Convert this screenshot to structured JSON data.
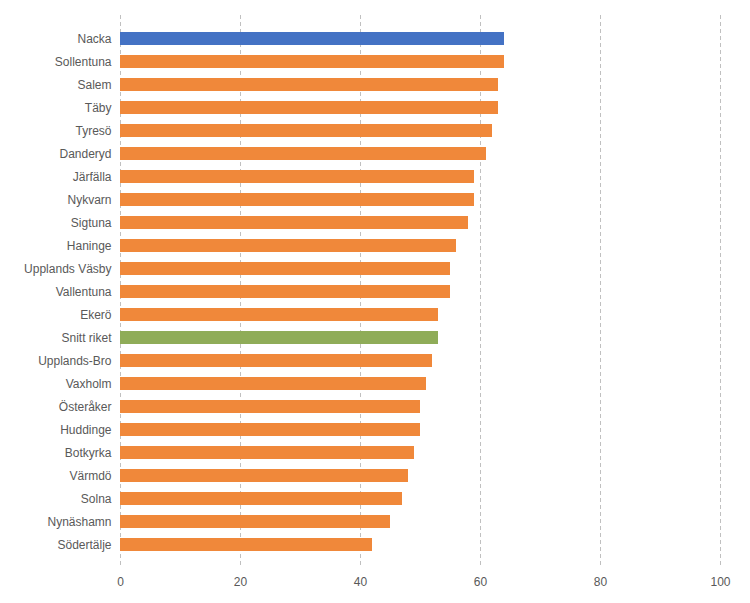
{
  "chart_data": {
    "type": "bar",
    "orientation": "horizontal",
    "categories": [
      "Nacka",
      "Sollentuna",
      "Salem",
      "Täby",
      "Tyresö",
      "Danderyd",
      "Järfälla",
      "Nykvarn",
      "Sigtuna",
      "Haninge",
      "Upplands Väsby",
      "Vallentuna",
      "Ekerö",
      "Snitt riket",
      "Upplands-Bro",
      "Vaxholm",
      "Österåker",
      "Huddinge",
      "Botkyrka",
      "Värmdö",
      "Solna",
      "Nynäshamn",
      "Södertälje"
    ],
    "values": [
      64,
      64,
      63,
      63,
      62,
      61,
      59,
      59,
      58,
      56,
      55,
      55,
      53,
      53,
      52,
      51,
      50,
      50,
      49,
      48,
      47,
      45,
      42
    ],
    "colors": [
      "#4472c4",
      "#f0883a",
      "#f0883a",
      "#f0883a",
      "#f0883a",
      "#f0883a",
      "#f0883a",
      "#f0883a",
      "#f0883a",
      "#f0883a",
      "#f0883a",
      "#f0883a",
      "#f0883a",
      "#8fac58",
      "#f0883a",
      "#f0883a",
      "#f0883a",
      "#f0883a",
      "#f0883a",
      "#f0883a",
      "#f0883a",
      "#f0883a",
      "#f0883a"
    ],
    "xlim": [
      0,
      100
    ],
    "xticks": [
      0,
      20,
      40,
      60,
      80,
      100
    ],
    "grid": true
  }
}
